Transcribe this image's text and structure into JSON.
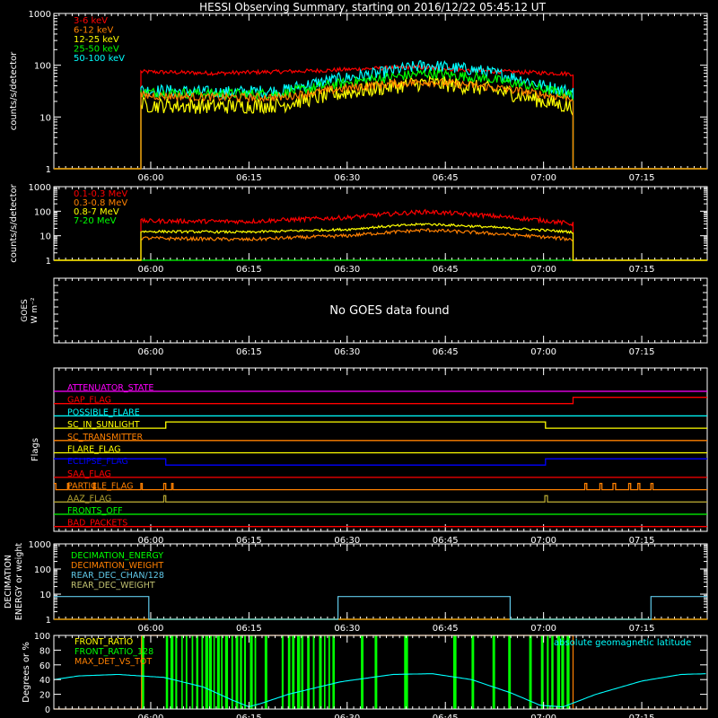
{
  "title": "HESSI Observing Summary, starting on 2016/12/22 05:45:12 UT",
  "colors": {
    "bg": "#000000",
    "axis": "#ffffff",
    "red": "#ff0000",
    "orange": "#ff8000",
    "yellow": "#ffff00",
    "green": "#00ff00",
    "cyan": "#00ffff",
    "magenta": "#ff00ff",
    "blue": "#0000ff",
    "olive": "#b0a030",
    "sky": "#60c8e8",
    "khaki": "#c0c070"
  },
  "time_axis": {
    "start_min": 345.2,
    "end_min": 445.0,
    "ticks": [
      {
        "t": 360,
        "label": "06:00"
      },
      {
        "t": 375,
        "label": "06:15"
      },
      {
        "t": 390,
        "label": "06:30"
      },
      {
        "t": 405,
        "label": "06:45"
      },
      {
        "t": 420,
        "label": "07:00"
      },
      {
        "t": 435,
        "label": "07:15"
      }
    ]
  },
  "chart_data": [
    {
      "type": "line",
      "panel": "front_rates",
      "scale": "log",
      "ylim": [
        1,
        1000
      ],
      "ylabel": "counts/s/detector",
      "yticks": [
        {
          "v": 1,
          "label": "1"
        },
        {
          "v": 10,
          "label": "10"
        },
        {
          "v": 100,
          "label": "100"
        },
        {
          "v": 1000,
          "label": "1000"
        }
      ],
      "data_start": 358.5,
      "data_end": 424.5,
      "series": [
        {
          "name": "3-6 keV",
          "color": "#ff0000",
          "x": [
            358.5,
            370,
            385,
            400,
            410,
            424.5
          ],
          "y": [
            75,
            70,
            78,
            92,
            78,
            68
          ],
          "noise": 0.04
        },
        {
          "name": "6-12 keV",
          "color": "#ff8000",
          "x": [
            358.5,
            370,
            380,
            395,
            402,
            410,
            420,
            424.5
          ],
          "y": [
            26,
            24,
            24,
            42,
            48,
            40,
            27,
            23
          ],
          "noise": 0.08
        },
        {
          "name": "12-25 keV",
          "color": "#ffff00",
          "x": [
            358.5,
            370,
            380,
            395,
            402,
            410,
            420,
            424.5
          ],
          "y": [
            17,
            16,
            17,
            36,
            46,
            37,
            20,
            15
          ],
          "noise": 0.15
        },
        {
          "name": "25-50 keV",
          "color": "#00ff00",
          "x": [
            358.5,
            370,
            380,
            395,
            402,
            410,
            420,
            424.5
          ],
          "y": [
            30,
            28,
            28,
            55,
            70,
            58,
            34,
            26
          ],
          "noise": 0.1
        },
        {
          "name": "50-100 keV",
          "color": "#00ffff",
          "x": [
            358.5,
            370,
            380,
            395,
            402,
            410,
            420,
            424.5
          ],
          "y": [
            33,
            30,
            32,
            70,
            100,
            80,
            40,
            30
          ],
          "noise": 0.12
        }
      ]
    },
    {
      "type": "line",
      "panel": "rear_rates",
      "scale": "log",
      "ylim": [
        1,
        1000
      ],
      "ylabel": "counts/s/detector",
      "yticks": [
        {
          "v": 1,
          "label": "1"
        },
        {
          "v": 10,
          "label": "10"
        },
        {
          "v": 100,
          "label": "100"
        },
        {
          "v": 1000,
          "label": "1000"
        }
      ],
      "data_start": 358.5,
      "data_end": 424.5,
      "series": [
        {
          "name": "0.1-0.3 MeV",
          "color": "#ff0000",
          "x": [
            358.5,
            375,
            390,
            402,
            415,
            424.5
          ],
          "y": [
            40,
            38,
            55,
            95,
            55,
            30
          ],
          "noise": 0.09
        },
        {
          "name": "0.3-0.8 MeV",
          "color": "#ff8000",
          "x": [
            358.5,
            375,
            390,
            402,
            415,
            424.5
          ],
          "y": [
            8,
            7,
            10,
            17,
            11,
            7
          ],
          "noise": 0.07
        },
        {
          "name": "0.8-7 MeV",
          "color": "#ffff00",
          "x": [
            358.5,
            375,
            390,
            402,
            415,
            424.5
          ],
          "y": [
            15,
            14,
            18,
            30,
            20,
            14
          ],
          "noise": 0.05
        },
        {
          "name": "7-20 MeV",
          "color": "#00ff00",
          "x": [
            358.5,
            424.5
          ],
          "y": [
            1,
            1
          ],
          "noise": 0
        }
      ]
    },
    {
      "type": "line",
      "panel": "goes",
      "ylabel": "GOES",
      "ylabel2": "W m⁻²",
      "message": "No GOES data found"
    },
    {
      "type": "line",
      "panel": "flags",
      "ylabel": "Flags",
      "series": [
        {
          "name": "ATTENUATOR_STATE",
          "color": "#ff00ff",
          "base": 0,
          "steps": [
            [
              345.2,
              0
            ]
          ]
        },
        {
          "name": "GAP_FLAG",
          "color": "#ff0000",
          "base": 1,
          "steps": [
            [
              345.2,
              0
            ],
            [
              424.5,
              1
            ]
          ]
        },
        {
          "name": "POSSIBLE_FLARE",
          "color": "#00ffff",
          "base": 2,
          "steps": [
            [
              345.2,
              0
            ]
          ]
        },
        {
          "name": "SC_IN_SUNLIGHT",
          "color": "#ffff00",
          "base": 3,
          "steps": [
            [
              345.2,
              0
            ],
            [
              362.3,
              1
            ],
            [
              420.3,
              0
            ]
          ]
        },
        {
          "name": "SC_TRANSMITTER",
          "color": "#ff8000",
          "base": 4,
          "steps": [
            [
              345.2,
              0
            ]
          ]
        },
        {
          "name": "FLARE_FLAG",
          "color": "#ffff00",
          "base": 5,
          "steps": [
            [
              345.2,
              0
            ]
          ]
        },
        {
          "name": "ECLIPSE_FLAG",
          "color": "#0000ff",
          "base": 6,
          "steps": [
            [
              345.2,
              1
            ],
            [
              362.3,
              0
            ],
            [
              420.3,
              1
            ]
          ]
        },
        {
          "name": "SAA_FLAG",
          "color": "#ff0000",
          "base": 7,
          "steps": [
            [
              345.2,
              0
            ]
          ]
        },
        {
          "name": "PARTICLE_FLAG",
          "color": "#ff8000",
          "base": 8,
          "steps": [
            [
              345.2,
              1
            ],
            [
              345.5,
              0
            ],
            [
              347.3,
              1
            ],
            [
              347.5,
              0
            ],
            [
              351.3,
              1
            ],
            [
              351.5,
              0
            ],
            [
              358.5,
              1
            ],
            [
              358.7,
              0
            ],
            [
              362.0,
              1
            ],
            [
              362.3,
              0
            ],
            [
              363.2,
              1
            ],
            [
              363.4,
              0
            ],
            [
              426.3,
              1
            ],
            [
              426.6,
              0
            ],
            [
              428.6,
              1
            ],
            [
              428.9,
              0
            ],
            [
              430.6,
              1
            ],
            [
              431.0,
              0
            ],
            [
              433.0,
              1
            ],
            [
              433.3,
              0
            ],
            [
              434.4,
              1
            ],
            [
              434.7,
              0
            ],
            [
              436.4,
              1
            ],
            [
              436.7,
              0
            ]
          ]
        },
        {
          "name": "AAZ_FLAG",
          "color": "#b0a030",
          "base": 9,
          "steps": [
            [
              345.2,
              0
            ],
            [
              362.0,
              1
            ],
            [
              362.3,
              0
            ],
            [
              420.2,
              1
            ],
            [
              420.6,
              0
            ]
          ]
        },
        {
          "name": "FRONTS_OFF",
          "color": "#00ff00",
          "base": 10,
          "steps": [
            [
              345.2,
              0
            ]
          ]
        },
        {
          "name": "BAD_PACKETS",
          "color": "#ff0000",
          "base": 11,
          "steps": [
            [
              345.2,
              0
            ]
          ]
        }
      ]
    },
    {
      "type": "line",
      "panel": "decimation",
      "scale": "log",
      "ylim": [
        1,
        1000
      ],
      "ylabel": "DECIMATION",
      "ylabel2": "ENERGY or weight",
      "yticks": [
        {
          "v": 1,
          "label": "1"
        },
        {
          "v": 10,
          "label": "10"
        },
        {
          "v": 100,
          "label": "100"
        },
        {
          "v": 1000,
          "label": "1000"
        }
      ],
      "series": [
        {
          "name": "DECIMATION_ENERGY",
          "color": "#00ff00",
          "steps": [
            [
              345.2,
              1
            ]
          ]
        },
        {
          "name": "DECIMATION_WEIGHT",
          "color": "#ff8000",
          "steps": [
            [
              345.2,
              1
            ]
          ]
        },
        {
          "name": "REAR_DEC_CHAN/128",
          "color": "#60c8e8",
          "steps": [
            [
              345.2,
              8
            ],
            [
              359.7,
              1
            ],
            [
              388.6,
              8
            ],
            [
              414.9,
              1
            ],
            [
              436.4,
              8
            ]
          ]
        },
        {
          "name": "REAR_DEC_WEIGHT",
          "color": "#c0c070",
          "steps": [
            [
              345.2,
              1
            ]
          ]
        }
      ]
    },
    {
      "type": "line",
      "panel": "ratios",
      "ylim": [
        0,
        100
      ],
      "ylabel": "Degrees or %",
      "yticks": [
        {
          "v": 0,
          "label": "0"
        },
        {
          "v": 20,
          "label": "20"
        },
        {
          "v": 40,
          "label": "40"
        },
        {
          "v": 60,
          "label": "60"
        },
        {
          "v": 80,
          "label": "80"
        },
        {
          "v": 100,
          "label": "100"
        }
      ],
      "annotation": "absolute geomagnetic latitude",
      "series": [
        {
          "name": "FRONT_RATIO",
          "color": "#ffff00"
        },
        {
          "name": "FRONT_RATIO_128",
          "color": "#00ff00",
          "bars": [
            [
              358.6,
              359.0
            ],
            [
              362.3,
              376.2
            ],
            [
              377.4,
              377.8
            ],
            [
              380.0,
              388.2
            ],
            [
              392.1,
              392.5
            ],
            [
              394.2,
              394.6
            ],
            [
              398.7,
              399.3
            ],
            [
              406.2,
              406.7
            ],
            [
              409.0,
              409.4
            ],
            [
              412.2,
              412.6
            ],
            [
              414.6,
              415.0
            ],
            [
              417.8,
              418.2
            ],
            [
              419.6,
              420.0
            ],
            [
              420.5,
              424.2
            ]
          ],
          "bar_alternate": 0.7
        },
        {
          "name": "MAX_DET_VS_TOT",
          "color": "#ff8000",
          "steps": [
            [
              345.2,
              0
            ],
            [
              358.6,
              100
            ],
            [
              424.5,
              0
            ]
          ]
        },
        {
          "name": "absolute geomagnetic latitude",
          "color": "#00ffff",
          "x": [
            345.2,
            349.0,
            355.0,
            362.0,
            368.0,
            372.5,
            375.0,
            377.0,
            381.0,
            389.0,
            397.0,
            403.0,
            409.0,
            415.0,
            419.5,
            423.0,
            428.0,
            435.0,
            441.0,
            445.0
          ],
          "y": [
            40,
            45,
            47,
            43,
            30,
            12,
            3,
            8,
            20,
            37,
            47,
            48,
            40,
            22,
            5,
            3,
            20,
            38,
            47,
            48
          ]
        }
      ]
    }
  ]
}
